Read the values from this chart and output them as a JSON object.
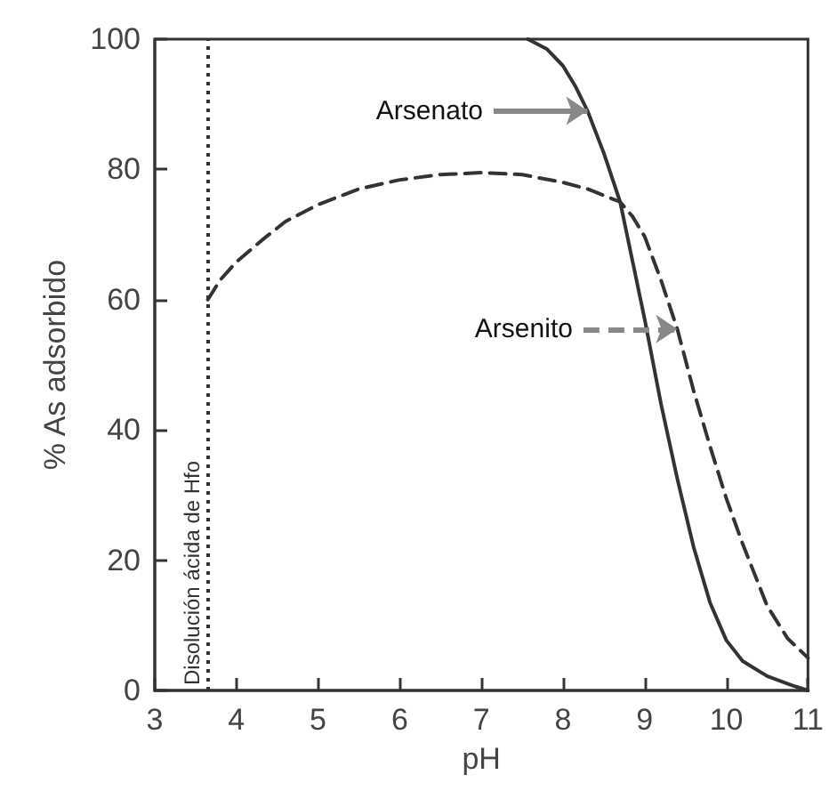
{
  "chart_data": {
    "type": "line",
    "xlabel": "pH",
    "ylabel": "% As adsorbido",
    "xlim": [
      3,
      11
    ],
    "xticks": [
      3,
      4,
      5,
      6,
      7,
      8,
      9,
      10,
      11
    ],
    "ylim": [
      0,
      100
    ],
    "yticks": [
      0,
      20,
      40,
      60,
      80,
      100
    ],
    "grid": false,
    "marker": "none",
    "series": [
      {
        "color": "#333333",
        "line_style": "solid",
        "x": [
          7.57,
          7.8,
          8.0,
          8.15,
          8.3,
          8.5,
          8.7,
          8.85,
          9.0,
          9.2,
          9.4,
          9.6,
          9.8,
          10.0,
          10.2,
          10.5,
          10.8,
          11.0
        ],
        "values": [
          100,
          98.5,
          95.9,
          92.8,
          89,
          82.5,
          75,
          66,
          57,
          44,
          32.5,
          22,
          13.5,
          7.7,
          4.5,
          2.2,
          0.8,
          0
        ]
      },
      {
        "color": "#333333",
        "line_style": "dashed",
        "x": [
          3.65,
          3.8,
          4,
          4.3,
          4.6,
          5,
          5.5,
          6,
          6.5,
          7,
          7.5,
          8,
          8.3,
          8.5,
          8.7,
          8.85,
          9,
          9.2,
          9.4,
          9.6,
          9.8,
          10,
          10.2,
          10.5,
          10.75,
          11
        ],
        "values": [
          60,
          63,
          65.8,
          69,
          72,
          74.6,
          77,
          78.4,
          79.2,
          79.5,
          79.2,
          78,
          77,
          76,
          75,
          72.8,
          69.7,
          63,
          55.5,
          46,
          37.5,
          29.5,
          22.5,
          13,
          8,
          5
        ]
      }
    ],
    "ref_lines": [
      {
        "axis": "x",
        "value": 3.65,
        "label": "Disolución ácida de Hfo",
        "line_style": "dotted",
        "color": "#333333"
      }
    ],
    "annotations": [
      {
        "text": "Arsenato",
        "x": 8.3,
        "y": 89
      },
      {
        "text": "Arsenito",
        "x": 9.4,
        "y": 55.5
      }
    ]
  }
}
